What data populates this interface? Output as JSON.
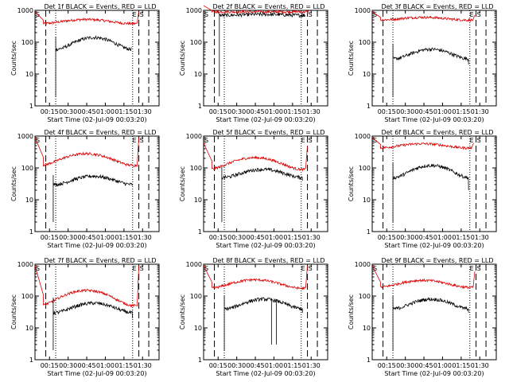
{
  "chart_data": {
    "type": "line",
    "ylabel": "Counts/sec",
    "xlabel": "Start Time (02-Jul-09 00:03:20)",
    "y_scale": "log",
    "ylim": [
      1,
      1000
    ],
    "y_ticks": [
      "1",
      "10",
      "100",
      "1000"
    ],
    "xlim_minutes": [
      3.3,
      103.3
    ],
    "x_ticks": [
      "00:15",
      "00:30",
      "00:45",
      "01:00",
      "01:15",
      "01:30"
    ],
    "x_tick_minutes": [
      15,
      30,
      45,
      60,
      75,
      90
    ],
    "x_tick_display": "00:15  00:30  00:45  01:00  01:15  01:30",
    "series_names": [
      "Events",
      "LLD"
    ],
    "colors": {
      "events": "#000000",
      "lld": "#dd0000"
    },
    "marker_labels": {
      "end": "E",
      "start": "S"
    },
    "markers": {
      "dashed_minutes": [
        12,
        87,
        95
      ],
      "dotted_minutes": [
        20,
        82
      ]
    },
    "panels": [
      {
        "title": "Det 1f BLACK = Events, RED = LLD",
        "events": {
          "start": 20,
          "end": 81,
          "v0": 150,
          "vmin": 60,
          "vmax": 140,
          "end_v": 70
        },
        "lld": {
          "v0": 900,
          "start": 10,
          "end": 86,
          "base": 450,
          "amp": 1.3,
          "end_v": 900
        },
        "events_spikes": []
      },
      {
        "title": "Det 2f BLACK = Events, RED = LLD",
        "events": {
          "start": 16,
          "end": 85,
          "v0": 800,
          "vmin": 700,
          "vmax": 750,
          "end_v": 700
        },
        "lld": {
          "v0": 1400,
          "start": 10,
          "end": 88,
          "base": 900,
          "amp": 1.0,
          "end_v": 1000
        },
        "events_spikes": []
      },
      {
        "title": "Det 3f BLACK = Events, RED = LLD",
        "events": {
          "start": 20,
          "end": 81,
          "v0": 90,
          "vmin": 30,
          "vmax": 60,
          "end_v": 20
        },
        "lld": {
          "v0": 900,
          "start": 10,
          "end": 85,
          "base": 550,
          "amp": 1.2,
          "end_v": 700
        },
        "events_spikes": []
      },
      {
        "title": "Det 4f BLACK = Events, RED = LLD",
        "events": {
          "start": 18,
          "end": 82,
          "v0": 60,
          "vmin": 30,
          "vmax": 55,
          "end_v": 30
        },
        "lld": {
          "v0": 900,
          "start": 10,
          "end": 86,
          "base": 200,
          "amp": 1.8,
          "end_v": 900
        },
        "events_spikes": []
      },
      {
        "title": "Det 5f BLACK = Events, RED = LLD",
        "events": {
          "start": 18,
          "end": 83,
          "v0": 110,
          "vmin": 50,
          "vmax": 90,
          "end_v": 40
        },
        "lld": {
          "v0": 600,
          "start": 10,
          "end": 86,
          "base": 150,
          "amp": 1.8,
          "end_v": 500
        },
        "events_spikes": []
      },
      {
        "title": "Det 6f BLACK = Events, RED = LLD",
        "events": {
          "start": 20,
          "end": 81,
          "v0": 150,
          "vmin": 50,
          "vmax": 120,
          "end_v": 20
        },
        "lld": {
          "v0": 900,
          "start": 10,
          "end": 84,
          "base": 500,
          "amp": 1.3,
          "end_v": 600
        },
        "events_spikes": []
      },
      {
        "title": "Det 7f BLACK = Events, RED = LLD",
        "events": {
          "start": 18,
          "end": 82,
          "v0": 90,
          "vmin": 30,
          "vmax": 60,
          "end_v": 20
        },
        "lld": {
          "v0": 900,
          "start": 10,
          "end": 86,
          "base": 100,
          "amp": 2.0,
          "end_v": 900
        },
        "events_spikes": []
      },
      {
        "title": "Det 8f BLACK = Events, RED = LLD",
        "events": {
          "start": 20,
          "end": 83,
          "v0": 100,
          "vmin": 40,
          "vmax": 80,
          "end_v": 30
        },
        "lld": {
          "v0": 900,
          "start": 10,
          "end": 86,
          "base": 250,
          "amp": 1.6,
          "end_v": 900
        },
        "events_spikes": [
          58,
          62
        ]
      },
      {
        "title": "Det 9f BLACK = Events, RED = LLD",
        "events": {
          "start": 20,
          "end": 81,
          "v0": 100,
          "vmin": 40,
          "vmax": 80,
          "end_v": 30
        },
        "lld": {
          "v0": 900,
          "start": 10,
          "end": 85,
          "base": 250,
          "amp": 1.5,
          "end_v": 600
        },
        "events_spikes": []
      }
    ]
  }
}
